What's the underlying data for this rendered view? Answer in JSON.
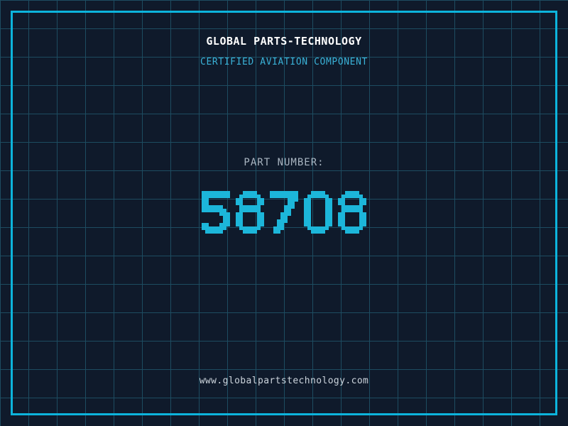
{
  "header": {
    "title": "GLOBAL PARTS-TECHNOLOGY",
    "subtitle": "CERTIFIED AVIATION COMPONENT"
  },
  "part": {
    "label": "PART NUMBER:",
    "number": "58708"
  },
  "footer": {
    "website": "www.globalpartstechnology.com"
  },
  "colors": {
    "background": "#0f1a2b",
    "grid_line": "#1d4c61",
    "frame": "#0cb4dc",
    "title": "#ffffff",
    "subtitle": "#3ab2d8",
    "label": "#a9b5c1",
    "number": "#1cb6da",
    "footer": "#ccd4dc"
  }
}
